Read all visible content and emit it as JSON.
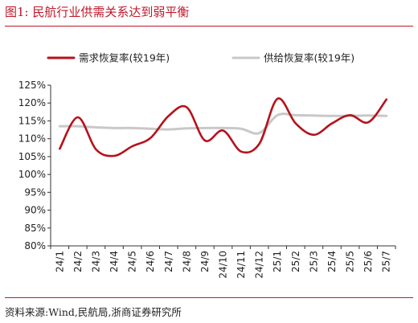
{
  "figure_title": "图1:   民航行业供需关系达到弱平衡",
  "source_note": "资料来源:Wind,民航局,浙商证券研究所",
  "chart_data": {
    "type": "line",
    "title": "",
    "xlabel": "",
    "ylabel": "",
    "categories": [
      "24/1",
      "24/2",
      "24/3",
      "24/4",
      "24/5",
      "24/6",
      "24/7",
      "24/8",
      "24/9",
      "24/10",
      "24/11",
      "24/12",
      "25/1",
      "25/2",
      "25/3",
      "25/4",
      "25/5",
      "25/6",
      "25/7"
    ],
    "series": [
      {
        "name": "需求恢复率(较19年)",
        "color": "#B5121B",
        "values": [
          107.2,
          116.0,
          107.0,
          105.2,
          107.9,
          110.2,
          116.4,
          118.8,
          109.5,
          112.3,
          106.4,
          108.6,
          121.2,
          114.3,
          111.1,
          114.3,
          116.6,
          114.6,
          121.0
        ]
      },
      {
        "name": "供给恢复率(较19年)",
        "color": "#C8C8C8",
        "values": [
          113.5,
          113.5,
          113.2,
          113.0,
          113.0,
          112.8,
          112.6,
          112.9,
          113.0,
          113.0,
          112.8,
          111.6,
          116.6,
          116.6,
          116.5,
          116.4,
          116.4,
          116.5,
          116.4
        ]
      }
    ],
    "ylim": [
      80,
      125
    ],
    "yticks": [
      "125%",
      "120%",
      "115%",
      "110%",
      "105%",
      "100%",
      "95%",
      "90%",
      "85%",
      "80%"
    ],
    "ytick_values": [
      125,
      120,
      115,
      110,
      105,
      100,
      95,
      90,
      85,
      80
    ],
    "grid": false,
    "legend_position": "top"
  }
}
